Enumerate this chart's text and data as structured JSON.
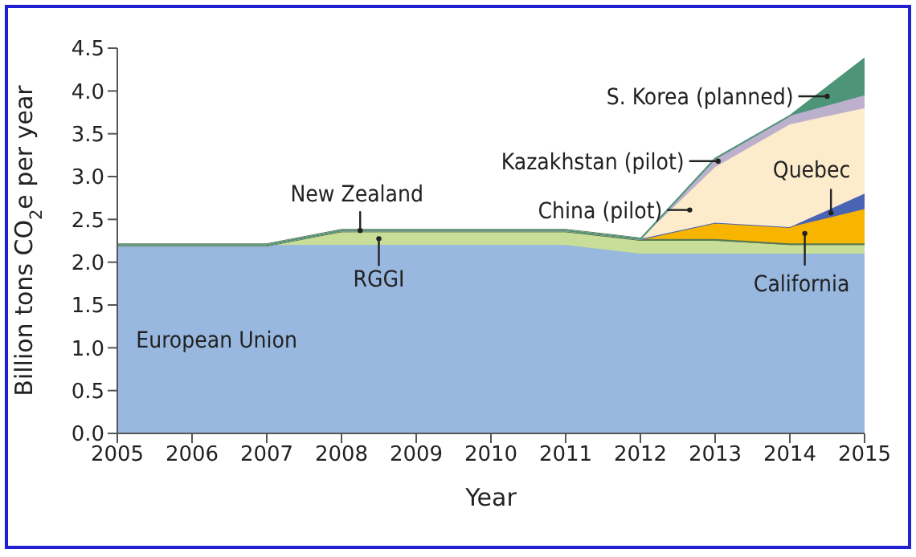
{
  "chart_data": {
    "type": "area",
    "stacked": true,
    "xlabel": "Year",
    "ylabel": "Billion tons CO$_{2}$e per year",
    "x": [
      2005,
      2006,
      2007,
      2008,
      2009,
      2010,
      2011,
      2012,
      2013,
      2014,
      2015
    ],
    "series": [
      {
        "name": "European Union",
        "color": "#98b8e0",
        "values": [
          2.2,
          2.2,
          2.2,
          2.2,
          2.2,
          2.2,
          2.2,
          2.1,
          2.1,
          2.1,
          2.1
        ]
      },
      {
        "name": "RGGI",
        "color": "#c8de98",
        "values": [
          0,
          0,
          0,
          0.15,
          0.15,
          0.15,
          0.15,
          0.15,
          0.15,
          0.1,
          0.1
        ]
      },
      {
        "name": "New Zealand",
        "color": "#5a7a50",
        "values": [
          0,
          0,
          0,
          0.02,
          0.02,
          0.02,
          0.02,
          0.02,
          0.02,
          0.02,
          0.02
        ]
      },
      {
        "name": "California",
        "color": "#f7b500",
        "values": [
          0,
          0,
          0,
          0,
          0,
          0,
          0,
          0,
          0.19,
          0.19,
          0.4
        ]
      },
      {
        "name": "Quebec",
        "color": "#4a64b4",
        "values": [
          0,
          0,
          0,
          0,
          0,
          0,
          0,
          0,
          0,
          0,
          0.18
        ]
      },
      {
        "name": "China (pilot)",
        "color": "#fdeccc",
        "values": [
          0,
          0,
          0,
          0,
          0,
          0,
          0,
          0,
          0.65,
          1.2,
          1.0
        ]
      },
      {
        "name": "Kazakhstan (pilot)",
        "color": "#bcb0cc",
        "values": [
          0,
          0,
          0,
          0,
          0,
          0,
          0,
          0,
          0.1,
          0.1,
          0.15
        ]
      },
      {
        "name": "S. Korea (planned)",
        "color": "#4e9478",
        "values": [
          0,
          0,
          0,
          0,
          0,
          0,
          0,
          0,
          0,
          0,
          0.43
        ]
      }
    ],
    "xlim": [
      2005,
      2015
    ],
    "xticks": [
      2005,
      2006,
      2007,
      2008,
      2009,
      2010,
      2011,
      2012,
      2013,
      2014,
      2015
    ],
    "ylim": [
      0,
      4.5
    ],
    "yticks": [
      {
        "value": 0,
        "label": "0.0"
      },
      {
        "value": 0.5,
        "label": "0.5"
      },
      {
        "value": 1,
        "label": "1.0"
      },
      {
        "value": 1.5,
        "label": "1.5"
      },
      {
        "value": 2,
        "label": "2.0"
      },
      {
        "value": 2.5,
        "label": "2.5"
      },
      {
        "value": 3,
        "label": "3.0"
      },
      {
        "value": 3.5,
        "label": "3.5"
      },
      {
        "value": 4,
        "label": "4.0"
      },
      {
        "value": 4.5,
        "label": "4.5"
      }
    ],
    "grid": false,
    "legend": false
  }
}
